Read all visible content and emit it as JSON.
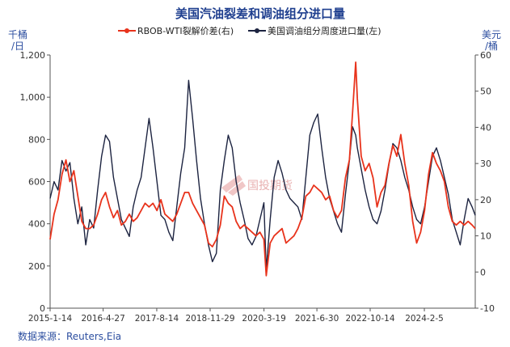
{
  "title": "美国汽油裂差和调油组分进口量",
  "left_unit": [
    "千桶",
    "/日"
  ],
  "right_unit": [
    "美元",
    "/桶"
  ],
  "source": "数据来源：Reuters,Eia",
  "watermark": "国投期货",
  "colors": {
    "title": "#1f3f8f",
    "left_series": "#1c2340",
    "right_series": "#e8331c",
    "unit": "#2d4fa0"
  },
  "chart_data": {
    "type": "line",
    "legend_placement": "top-center",
    "x_tick_labels": [
      "2015-1-14",
      "2016-4-27",
      "2017-8-14",
      "2018-11-29",
      "2020-3-19",
      "2021-6-30",
      "2022-10-14",
      "2024-2-5"
    ],
    "x_range": [
      "2015-01-14",
      "2025-04-30"
    ],
    "left_axis": {
      "min": 0,
      "max": 1200,
      "step": 200
    },
    "right_axis": {
      "min": -10,
      "max": 60,
      "step": 10
    },
    "series": [
      {
        "name": "RBOB-WTI裂解价差(右)",
        "axis": "right",
        "color": "#e8331c",
        "points": [
          [
            "2015-01-14",
            9
          ],
          [
            "2015-02-18",
            16
          ],
          [
            "2015-03-25",
            20
          ],
          [
            "2015-04-29",
            27
          ],
          [
            "2015-06-03",
            31
          ],
          [
            "2015-07-08",
            25
          ],
          [
            "2015-08-12",
            28
          ],
          [
            "2015-09-16",
            21
          ],
          [
            "2015-10-21",
            14
          ],
          [
            "2015-11-25",
            12
          ],
          [
            "2015-12-30",
            12
          ],
          [
            "2016-02-03",
            13
          ],
          [
            "2016-03-09",
            16
          ],
          [
            "2016-04-13",
            20
          ],
          [
            "2016-05-18",
            22
          ],
          [
            "2016-06-22",
            18
          ],
          [
            "2016-07-27",
            15
          ],
          [
            "2016-08-31",
            17
          ],
          [
            "2016-10-05",
            13
          ],
          [
            "2016-11-09",
            14
          ],
          [
            "2016-12-14",
            16
          ],
          [
            "2017-01-18",
            14
          ],
          [
            "2017-02-22",
            15
          ],
          [
            "2017-03-29",
            17
          ],
          [
            "2017-05-03",
            19
          ],
          [
            "2017-06-07",
            18
          ],
          [
            "2017-07-12",
            19
          ],
          [
            "2017-08-16",
            17
          ],
          [
            "2017-09-20",
            20
          ],
          [
            "2017-10-25",
            16
          ],
          [
            "2017-11-29",
            15
          ],
          [
            "2018-01-03",
            14
          ],
          [
            "2018-02-07",
            16
          ],
          [
            "2018-03-14",
            19
          ],
          [
            "2018-04-18",
            22
          ],
          [
            "2018-05-23",
            22
          ],
          [
            "2018-06-27",
            19
          ],
          [
            "2018-08-01",
            17
          ],
          [
            "2018-09-05",
            15
          ],
          [
            "2018-10-10",
            13
          ],
          [
            "2018-11-14",
            8
          ],
          [
            "2018-12-19",
            7
          ],
          [
            "2019-01-23",
            9
          ],
          [
            "2019-02-27",
            13
          ],
          [
            "2019-04-03",
            21
          ],
          [
            "2019-05-08",
            19
          ],
          [
            "2019-06-12",
            18
          ],
          [
            "2019-07-17",
            14
          ],
          [
            "2019-08-21",
            12
          ],
          [
            "2019-09-25",
            13
          ],
          [
            "2019-10-30",
            12
          ],
          [
            "2019-12-04",
            11
          ],
          [
            "2020-01-08",
            10
          ],
          [
            "2020-02-12",
            11
          ],
          [
            "2020-03-18",
            9
          ],
          [
            "2020-04-08",
            -1
          ],
          [
            "2020-05-13",
            8
          ],
          [
            "2020-06-17",
            10
          ],
          [
            "2020-07-22",
            11
          ],
          [
            "2020-08-26",
            12
          ],
          [
            "2020-09-30",
            8
          ],
          [
            "2020-11-04",
            9
          ],
          [
            "2020-12-09",
            10
          ],
          [
            "2021-01-13",
            12
          ],
          [
            "2021-02-17",
            15
          ],
          [
            "2021-03-24",
            21
          ],
          [
            "2021-04-28",
            22
          ],
          [
            "2021-06-02",
            24
          ],
          [
            "2021-07-07",
            23
          ],
          [
            "2021-08-11",
            22
          ],
          [
            "2021-09-15",
            20
          ],
          [
            "2021-10-20",
            21
          ],
          [
            "2021-11-24",
            17
          ],
          [
            "2021-12-29",
            15
          ],
          [
            "2022-02-02",
            17
          ],
          [
            "2022-03-09",
            26
          ],
          [
            "2022-04-13",
            31
          ],
          [
            "2022-05-11",
            44
          ],
          [
            "2022-06-08",
            58
          ],
          [
            "2022-06-22",
            48
          ],
          [
            "2022-07-27",
            32
          ],
          [
            "2022-08-31",
            28
          ],
          [
            "2022-10-05",
            30
          ],
          [
            "2022-11-09",
            26
          ],
          [
            "2022-12-14",
            18
          ],
          [
            "2023-01-18",
            22
          ],
          [
            "2023-02-22",
            24
          ],
          [
            "2023-03-29",
            30
          ],
          [
            "2023-05-03",
            35
          ],
          [
            "2023-06-07",
            32
          ],
          [
            "2023-07-12",
            38
          ],
          [
            "2023-08-16",
            30
          ],
          [
            "2023-09-20",
            24
          ],
          [
            "2023-10-25",
            14
          ],
          [
            "2023-11-29",
            8
          ],
          [
            "2024-01-03",
            11
          ],
          [
            "2024-02-07",
            17
          ],
          [
            "2024-03-13",
            27
          ],
          [
            "2024-04-17",
            33
          ],
          [
            "2024-05-22",
            30
          ],
          [
            "2024-06-26",
            28
          ],
          [
            "2024-07-31",
            25
          ],
          [
            "2024-09-04",
            18
          ],
          [
            "2024-10-09",
            14
          ],
          [
            "2024-11-13",
            13
          ],
          [
            "2024-12-18",
            14
          ],
          [
            "2025-01-22",
            13
          ],
          [
            "2025-02-26",
            14
          ],
          [
            "2025-04-02",
            13
          ],
          [
            "2025-04-30",
            12
          ]
        ]
      },
      {
        "name": "美国调油组分周度进口量(左)",
        "axis": "left",
        "color": "#1c2340",
        "points": [
          [
            "2015-01-14",
            520
          ],
          [
            "2015-02-18",
            600
          ],
          [
            "2015-03-25",
            560
          ],
          [
            "2015-04-29",
            700
          ],
          [
            "2015-06-03",
            650
          ],
          [
            "2015-07-08",
            690
          ],
          [
            "2015-08-12",
            520
          ],
          [
            "2015-09-16",
            400
          ],
          [
            "2015-10-21",
            480
          ],
          [
            "2015-11-25",
            300
          ],
          [
            "2015-12-30",
            420
          ],
          [
            "2016-02-03",
            380
          ],
          [
            "2016-03-09",
            560
          ],
          [
            "2016-04-13",
            720
          ],
          [
            "2016-05-18",
            820
          ],
          [
            "2016-06-22",
            790
          ],
          [
            "2016-07-27",
            620
          ],
          [
            "2016-08-31",
            520
          ],
          [
            "2016-10-05",
            420
          ],
          [
            "2016-11-09",
            380
          ],
          [
            "2016-12-14",
            340
          ],
          [
            "2017-01-18",
            480
          ],
          [
            "2017-02-22",
            560
          ],
          [
            "2017-03-29",
            620
          ],
          [
            "2017-05-03",
            760
          ],
          [
            "2017-06-07",
            900
          ],
          [
            "2017-07-12",
            760
          ],
          [
            "2017-08-16",
            600
          ],
          [
            "2017-09-20",
            440
          ],
          [
            "2017-10-25",
            420
          ],
          [
            "2017-11-29",
            360
          ],
          [
            "2018-01-03",
            320
          ],
          [
            "2018-02-07",
            480
          ],
          [
            "2018-03-14",
            640
          ],
          [
            "2018-04-18",
            760
          ],
          [
            "2018-05-23",
            1080
          ],
          [
            "2018-06-27",
            900
          ],
          [
            "2018-08-01",
            700
          ],
          [
            "2018-09-05",
            520
          ],
          [
            "2018-10-10",
            400
          ],
          [
            "2018-11-14",
            300
          ],
          [
            "2018-12-19",
            220
          ],
          [
            "2019-01-23",
            260
          ],
          [
            "2019-02-27",
            560
          ],
          [
            "2019-04-03",
            700
          ],
          [
            "2019-05-08",
            820
          ],
          [
            "2019-06-12",
            760
          ],
          [
            "2019-07-17",
            600
          ],
          [
            "2019-08-21",
            500
          ],
          [
            "2019-09-25",
            420
          ],
          [
            "2019-10-30",
            330
          ],
          [
            "2019-12-04",
            300
          ],
          [
            "2020-01-08",
            340
          ],
          [
            "2020-02-12",
            420
          ],
          [
            "2020-03-18",
            500
          ],
          [
            "2020-04-08",
            180
          ],
          [
            "2020-05-13",
            420
          ],
          [
            "2020-06-17",
            620
          ],
          [
            "2020-07-22",
            700
          ],
          [
            "2020-08-26",
            640
          ],
          [
            "2020-09-30",
            560
          ],
          [
            "2020-11-04",
            520
          ],
          [
            "2020-12-09",
            500
          ],
          [
            "2021-01-13",
            480
          ],
          [
            "2021-02-17",
            420
          ],
          [
            "2021-03-24",
            620
          ],
          [
            "2021-04-28",
            820
          ],
          [
            "2021-06-02",
            880
          ],
          [
            "2021-07-07",
            920
          ],
          [
            "2021-08-11",
            760
          ],
          [
            "2021-09-15",
            620
          ],
          [
            "2021-10-20",
            520
          ],
          [
            "2021-11-24",
            460
          ],
          [
            "2021-12-29",
            400
          ],
          [
            "2022-02-02",
            360
          ],
          [
            "2022-03-09",
            540
          ],
          [
            "2022-04-13",
            700
          ],
          [
            "2022-05-11",
            860
          ],
          [
            "2022-06-08",
            820
          ],
          [
            "2022-06-22",
            760
          ],
          [
            "2022-07-27",
            660
          ],
          [
            "2022-08-31",
            560
          ],
          [
            "2022-10-05",
            480
          ],
          [
            "2022-11-09",
            420
          ],
          [
            "2022-12-14",
            400
          ],
          [
            "2023-01-18",
            460
          ],
          [
            "2023-02-22",
            560
          ],
          [
            "2023-03-29",
            680
          ],
          [
            "2023-05-03",
            780
          ],
          [
            "2023-06-07",
            760
          ],
          [
            "2023-07-12",
            700
          ],
          [
            "2023-08-16",
            620
          ],
          [
            "2023-09-20",
            560
          ],
          [
            "2023-10-25",
            480
          ],
          [
            "2023-11-29",
            420
          ],
          [
            "2024-01-03",
            400
          ],
          [
            "2024-02-07",
            480
          ],
          [
            "2024-03-13",
            600
          ],
          [
            "2024-04-17",
            720
          ],
          [
            "2024-05-22",
            760
          ],
          [
            "2024-06-26",
            700
          ],
          [
            "2024-07-31",
            620
          ],
          [
            "2024-09-04",
            540
          ],
          [
            "2024-10-09",
            420
          ],
          [
            "2024-11-13",
            360
          ],
          [
            "2024-12-18",
            300
          ],
          [
            "2025-01-22",
            420
          ],
          [
            "2025-02-26",
            520
          ],
          [
            "2025-04-02",
            480
          ],
          [
            "2025-04-30",
            440
          ]
        ]
      }
    ]
  }
}
